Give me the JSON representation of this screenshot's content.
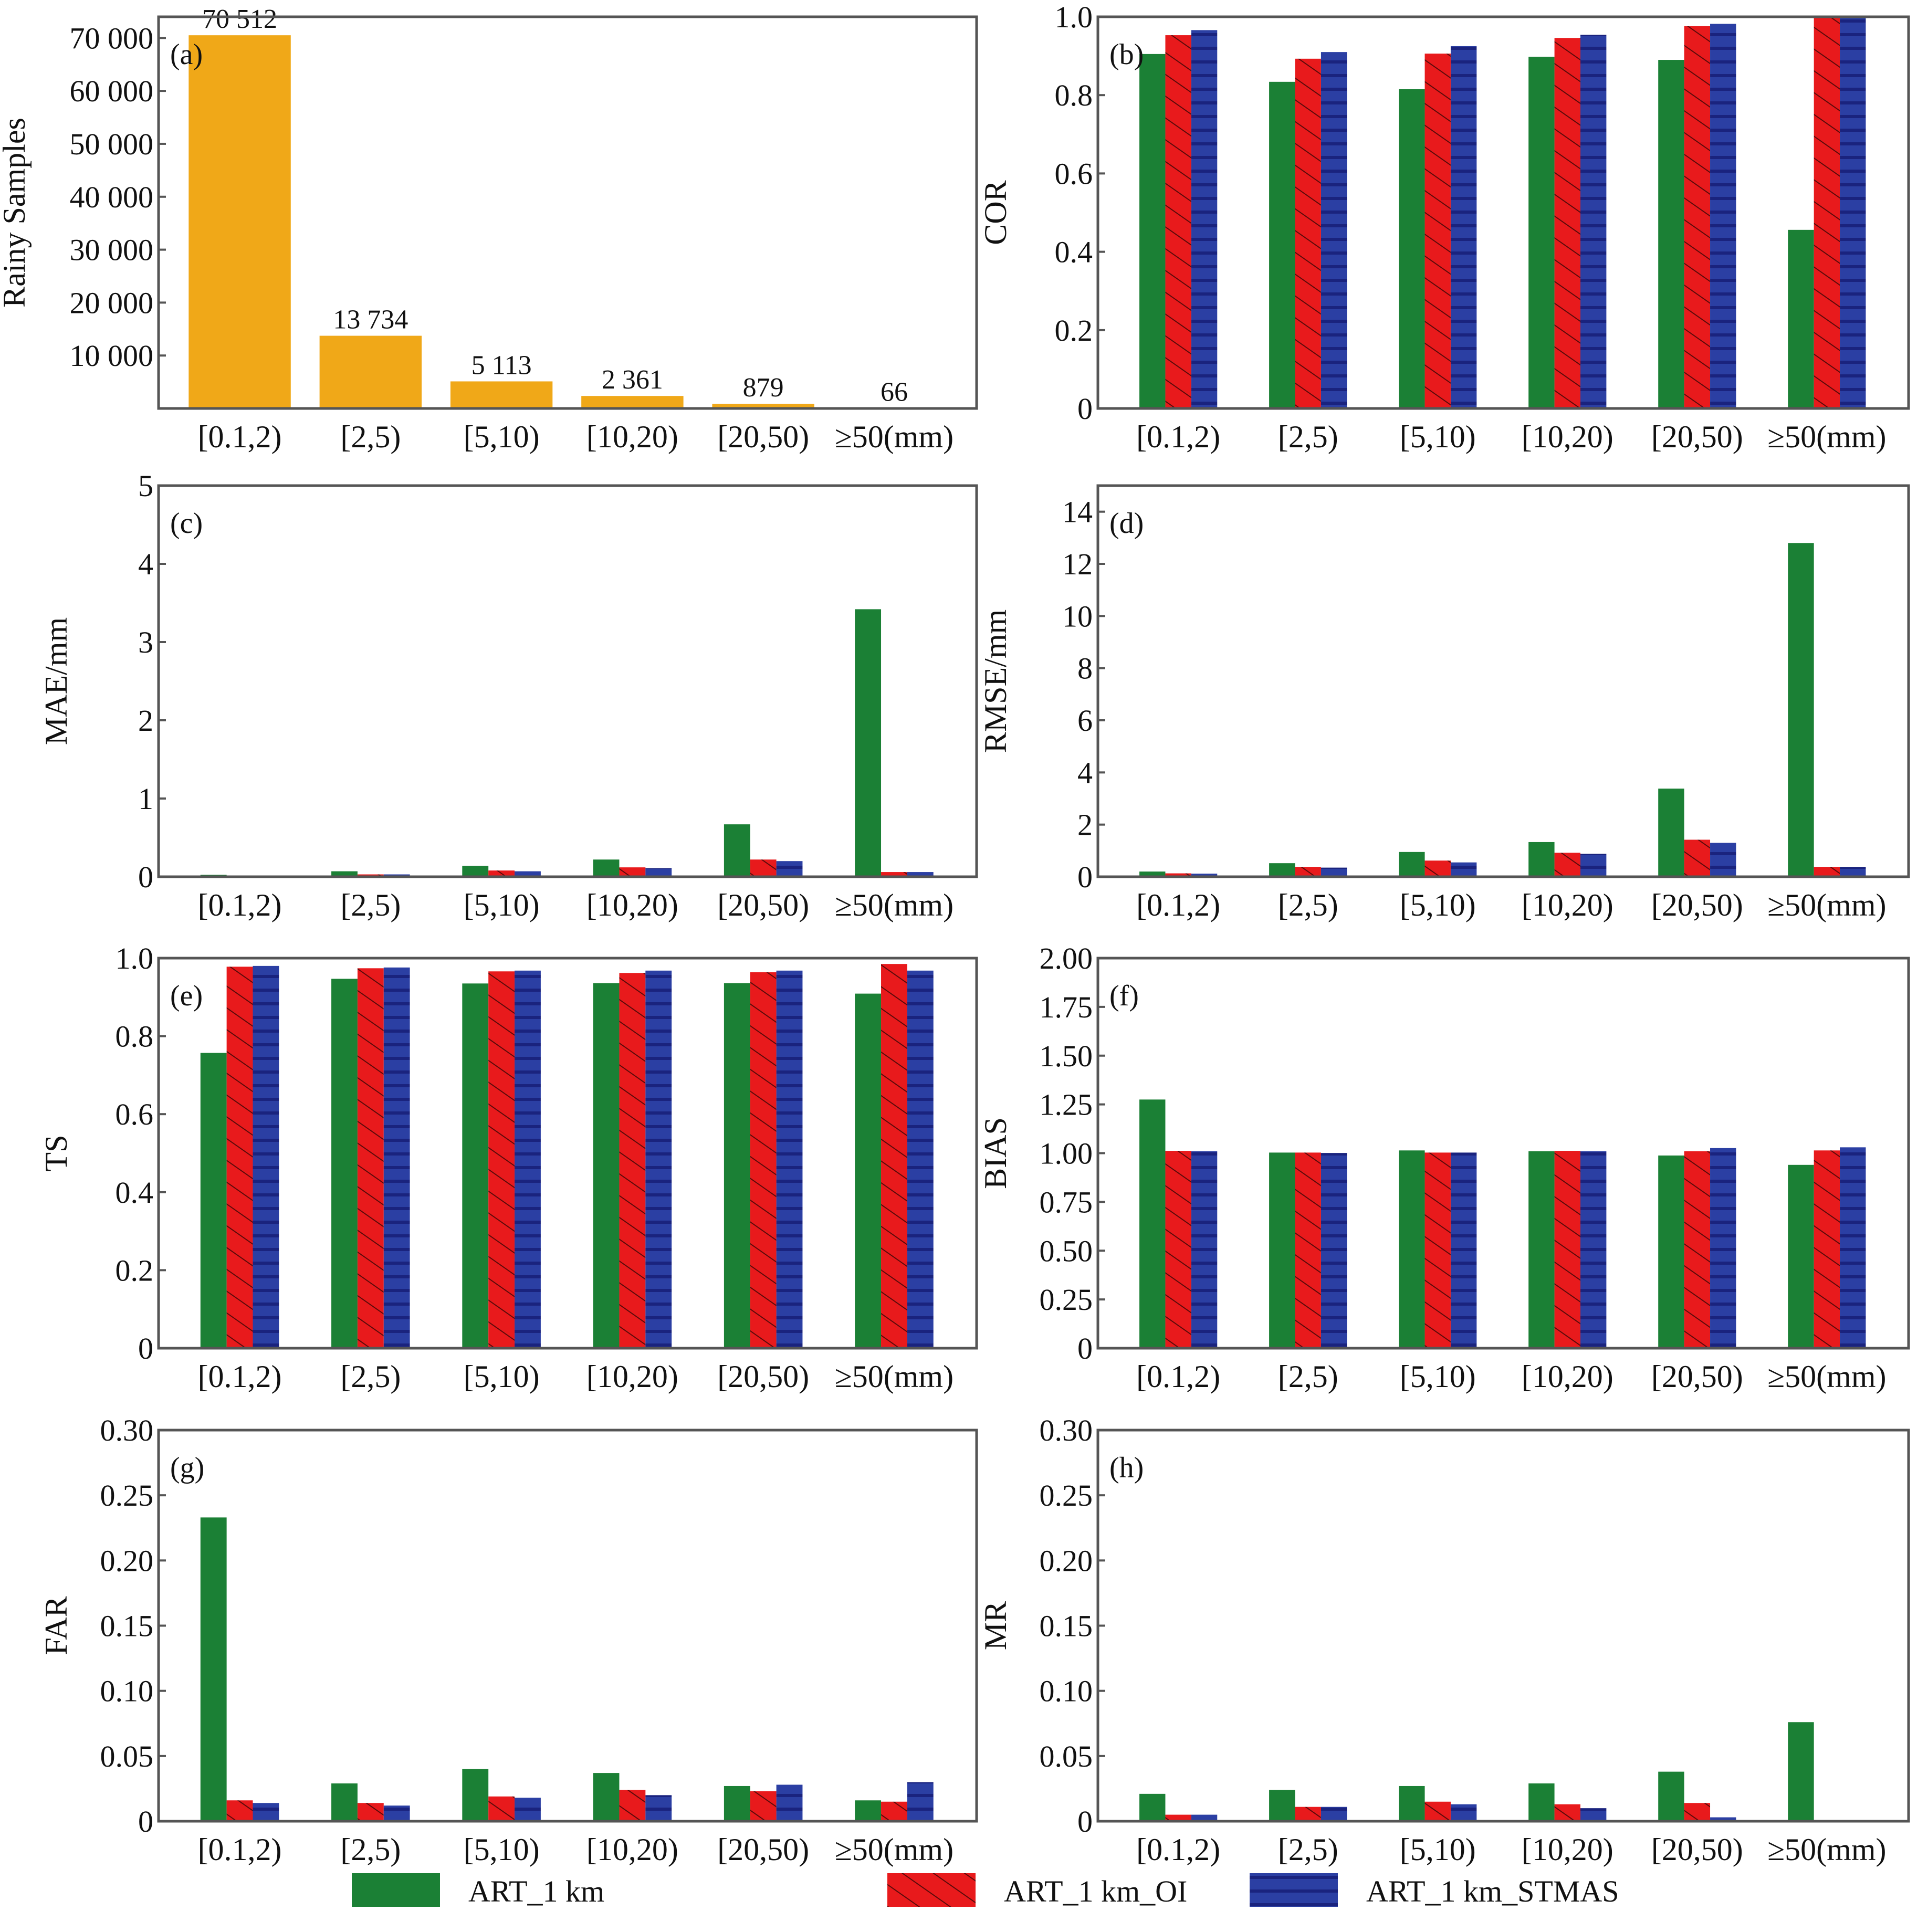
{
  "figure": {
    "legend": [
      {
        "name": "ART_1 km",
        "color": "#1b8035",
        "pattern": "solid"
      },
      {
        "name": "ART_1 km_OI",
        "color": "#e81a1c",
        "pattern": "diagonal-hatch"
      },
      {
        "name": "ART_1 km_STMAS",
        "color": "#2b3fa3",
        "pattern": "horizontal-stripes"
      }
    ],
    "legend_placement": "bottom-center",
    "stripe_color": "#1a237e",
    "hatch_color": "#5a0a0a",
    "single_bar_color": "#f0a818"
  },
  "chart_data": [
    {
      "panel": "(a)",
      "type": "bar",
      "title": "",
      "xlabel": "",
      "ylabel": "Rainy Samples",
      "categories": [
        "[0.1,2)",
        "[2,5)",
        "[5,10)",
        "[10,20)",
        "[20,50)",
        "≥50(mm)"
      ],
      "values": [
        70512,
        13734,
        5113,
        2361,
        879,
        66
      ],
      "data_labels": [
        "70 512",
        "13 734",
        "5 113",
        "2 361",
        "879",
        "66"
      ],
      "ylim": [
        0,
        74000
      ],
      "yticks": [
        10000,
        20000,
        30000,
        40000,
        50000,
        60000,
        70000
      ],
      "ytick_labels": [
        "10 000",
        "20 000",
        "30 000",
        "40 000",
        "50 000",
        "60 000",
        "70 000"
      ],
      "grid": false
    },
    {
      "panel": "(b)",
      "type": "bar",
      "title": "",
      "xlabel": "",
      "ylabel": "COR",
      "categories": [
        "[0.1,2)",
        "[2,5)",
        "[5,10)",
        "[10,20)",
        "[20,50)",
        "≥50(mm)"
      ],
      "series": [
        {
          "name": "ART_1 km",
          "values": [
            0.905,
            0.834,
            0.815,
            0.898,
            0.89,
            0.456
          ]
        },
        {
          "name": "ART_1 km_OI",
          "values": [
            0.953,
            0.893,
            0.906,
            0.946,
            0.976,
            1.0
          ]
        },
        {
          "name": "ART_1 km_STMAS",
          "values": [
            0.966,
            0.91,
            0.925,
            0.954,
            0.982,
            1.0
          ]
        }
      ],
      "ylim": [
        0,
        1.0
      ],
      "yticks": [
        0,
        0.2,
        0.4,
        0.6,
        0.8,
        1.0
      ],
      "ytick_labels": [
        "0",
        "0.2",
        "0.4",
        "0.6",
        "0.8",
        "1.0"
      ],
      "grid": false
    },
    {
      "panel": "(c)",
      "type": "bar",
      "title": "",
      "xlabel": "",
      "ylabel": "MAE/mm",
      "categories": [
        "[0.1,2)",
        "[2,5)",
        "[5,10)",
        "[10,20)",
        "[20,50)",
        "≥50(mm)"
      ],
      "series": [
        {
          "name": "ART_1 km",
          "values": [
            0.025,
            0.07,
            0.14,
            0.22,
            0.67,
            3.42
          ]
        },
        {
          "name": "ART_1 km_OI",
          "values": [
            0.01,
            0.03,
            0.08,
            0.12,
            0.22,
            0.06
          ]
        },
        {
          "name": "ART_1 km_STMAS",
          "values": [
            0.005,
            0.03,
            0.07,
            0.11,
            0.2,
            0.06
          ]
        }
      ],
      "ylim": [
        0,
        5
      ],
      "yticks": [
        0,
        1,
        2,
        3,
        4,
        5
      ],
      "ytick_labels": [
        "0",
        "1",
        "2",
        "3",
        "4",
        "5"
      ],
      "grid": false
    },
    {
      "panel": "(d)",
      "type": "bar",
      "title": "",
      "xlabel": "",
      "ylabel": "RMSE/mm",
      "categories": [
        "[0.1,2)",
        "[2,5)",
        "[5,10)",
        "[10,20)",
        "[20,50)",
        "≥50(mm)"
      ],
      "series": [
        {
          "name": "ART_1 km",
          "values": [
            0.2,
            0.52,
            0.95,
            1.33,
            3.38,
            12.8
          ]
        },
        {
          "name": "ART_1 km_OI",
          "values": [
            0.13,
            0.38,
            0.62,
            0.92,
            1.42,
            0.38
          ]
        },
        {
          "name": "ART_1 km_STMAS",
          "values": [
            0.12,
            0.35,
            0.55,
            0.88,
            1.3,
            0.38
          ]
        }
      ],
      "ylim": [
        0,
        15
      ],
      "yticks": [
        0,
        2,
        4,
        6,
        8,
        10,
        12,
        14
      ],
      "ytick_labels": [
        "0",
        "2",
        "4",
        "6",
        "8",
        "10",
        "12",
        "14"
      ],
      "grid": false
    },
    {
      "panel": "(e)",
      "type": "bar",
      "title": "",
      "xlabel": "",
      "ylabel": "TS",
      "categories": [
        "[0.1,2)",
        "[2,5)",
        "[5,10)",
        "[10,20)",
        "[20,50)",
        "≥50(mm)"
      ],
      "series": [
        {
          "name": "ART_1 km",
          "values": [
            0.757,
            0.947,
            0.935,
            0.936,
            0.936,
            0.909
          ]
        },
        {
          "name": "ART_1 km_OI",
          "values": [
            0.978,
            0.974,
            0.966,
            0.962,
            0.964,
            0.985
          ]
        },
        {
          "name": "ART_1 km_STMAS",
          "values": [
            0.98,
            0.976,
            0.968,
            0.968,
            0.968,
            0.968
          ]
        }
      ],
      "ylim": [
        0,
        1.0
      ],
      "yticks": [
        0,
        0.2,
        0.4,
        0.6,
        0.8,
        1.0
      ],
      "ytick_labels": [
        "0",
        "0.2",
        "0.4",
        "0.6",
        "0.8",
        "1.0"
      ],
      "grid": false
    },
    {
      "panel": "(f)",
      "type": "bar",
      "title": "",
      "xlabel": "",
      "ylabel": "BIAS",
      "categories": [
        "[0.1,2)",
        "[2,5)",
        "[5,10)",
        "[10,20)",
        "[20,50)",
        "≥50(mm)"
      ],
      "series": [
        {
          "name": "ART_1 km",
          "values": [
            1.275,
            1.003,
            1.014,
            1.01,
            0.988,
            0.94
          ]
        },
        {
          "name": "ART_1 km_OI",
          "values": [
            1.012,
            1.003,
            1.003,
            1.012,
            1.01,
            1.014
          ]
        },
        {
          "name": "ART_1 km_STMAS",
          "values": [
            1.01,
            1.001,
            1.003,
            1.01,
            1.026,
            1.03
          ]
        }
      ],
      "ylim": [
        0,
        2.0
      ],
      "yticks": [
        0,
        0.25,
        0.5,
        0.75,
        1.0,
        1.25,
        1.5,
        1.75,
        2.0
      ],
      "ytick_labels": [
        "0",
        "0.25",
        "0.50",
        "0.75",
        "1.00",
        "1.25",
        "1.50",
        "1.75",
        "2.00"
      ],
      "grid": false
    },
    {
      "panel": "(g)",
      "type": "bar",
      "title": "",
      "xlabel": "",
      "ylabel": "FAR",
      "categories": [
        "[0.1,2)",
        "[2,5)",
        "[5,10)",
        "[10,20)",
        "[20,50)",
        "≥50(mm)"
      ],
      "series": [
        {
          "name": "ART_1 km",
          "values": [
            0.233,
            0.029,
            0.04,
            0.037,
            0.027,
            0.016
          ]
        },
        {
          "name": "ART_1 km_OI",
          "values": [
            0.016,
            0.014,
            0.019,
            0.024,
            0.023,
            0.015
          ]
        },
        {
          "name": "ART_1 km_STMAS",
          "values": [
            0.014,
            0.012,
            0.018,
            0.02,
            0.028,
            0.03
          ]
        }
      ],
      "ylim": [
        0,
        0.3
      ],
      "yticks": [
        0,
        0.05,
        0.1,
        0.15,
        0.2,
        0.25,
        0.3
      ],
      "ytick_labels": [
        "0",
        "0.05",
        "0.10",
        "0.15",
        "0.20",
        "0.25",
        "0.30"
      ],
      "grid": false
    },
    {
      "panel": "(h)",
      "type": "bar",
      "title": "",
      "xlabel": "",
      "ylabel": "MR",
      "categories": [
        "[0.1,2)",
        "[2,5)",
        "[5,10)",
        "[10,20)",
        "[20,50)",
        "≥50(mm)"
      ],
      "series": [
        {
          "name": "ART_1 km",
          "values": [
            0.021,
            0.024,
            0.027,
            0.029,
            0.038,
            0.076
          ]
        },
        {
          "name": "ART_1 km_OI",
          "values": [
            0.005,
            0.011,
            0.015,
            0.013,
            0.014,
            0.0
          ]
        },
        {
          "name": "ART_1 km_STMAS",
          "values": [
            0.005,
            0.011,
            0.013,
            0.01,
            0.003,
            0.0
          ]
        }
      ],
      "ylim": [
        0,
        0.3
      ],
      "yticks": [
        0,
        0.05,
        0.1,
        0.15,
        0.2,
        0.25,
        0.3
      ],
      "ytick_labels": [
        "0",
        "0.05",
        "0.10",
        "0.15",
        "0.20",
        "0.25",
        "0.30"
      ],
      "grid": false
    }
  ]
}
